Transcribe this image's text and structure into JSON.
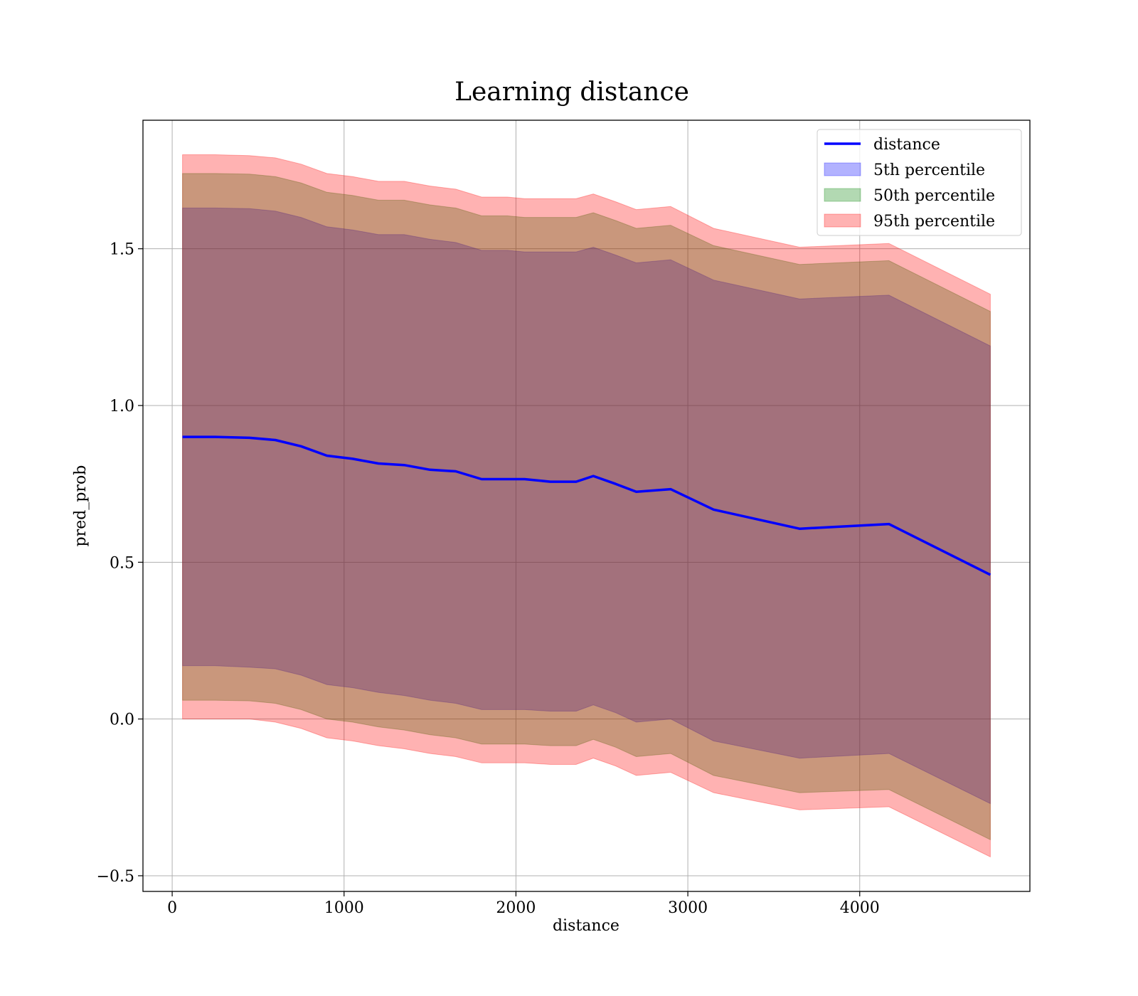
{
  "chart_data": {
    "type": "area",
    "title": "Learning distance",
    "xlabel": "distance",
    "ylabel": "pred_prob",
    "xlim": [
      -170,
      4990
    ],
    "ylim": [
      -0.55,
      1.91
    ],
    "xticks": [
      0,
      1000,
      2000,
      3000,
      4000
    ],
    "xtick_labels": [
      "0",
      "1000",
      "2000",
      "3000",
      "4000"
    ],
    "yticks": [
      -0.5,
      0.0,
      0.5,
      1.0,
      1.5
    ],
    "ytick_labels": [
      "−0.5",
      "0.0",
      "0.5",
      "1.0",
      "1.5"
    ],
    "grid": true,
    "legend_position": "top-right",
    "x": [
      60,
      250,
      450,
      600,
      750,
      900,
      1050,
      1200,
      1350,
      1500,
      1650,
      1800,
      1950,
      2050,
      2200,
      2350,
      2450,
      2580,
      2700,
      2900,
      3150,
      3650,
      4170,
      4760
    ],
    "series": [
      {
        "name": "distance",
        "kind": "line",
        "color": "#0000ff",
        "values": [
          0.9,
          0.9,
          0.897,
          0.89,
          0.87,
          0.84,
          0.83,
          0.815,
          0.81,
          0.795,
          0.79,
          0.765,
          0.765,
          0.765,
          0.757,
          0.757,
          0.775,
          0.75,
          0.725,
          0.733,
          0.668,
          0.607,
          0.622,
          0.46
        ]
      },
      {
        "name": "5th percentile",
        "kind": "band",
        "color": "#0000ff",
        "lower": [
          0.17,
          0.17,
          0.165,
          0.16,
          0.14,
          0.11,
          0.1,
          0.085,
          0.075,
          0.06,
          0.05,
          0.03,
          0.03,
          0.03,
          0.025,
          0.025,
          0.045,
          0.02,
          -0.01,
          0.0,
          -0.07,
          -0.125,
          -0.11,
          -0.27
        ],
        "upper": [
          1.63,
          1.63,
          1.628,
          1.62,
          1.6,
          1.57,
          1.56,
          1.545,
          1.545,
          1.53,
          1.52,
          1.495,
          1.495,
          1.49,
          1.49,
          1.49,
          1.505,
          1.48,
          1.455,
          1.465,
          1.4,
          1.34,
          1.352,
          1.19
        ]
      },
      {
        "name": "50th percentile",
        "kind": "band",
        "color": "#008000",
        "lower": [
          0.06,
          0.06,
          0.058,
          0.05,
          0.03,
          0.0,
          -0.01,
          -0.025,
          -0.035,
          -0.05,
          -0.06,
          -0.08,
          -0.08,
          -0.08,
          -0.085,
          -0.085,
          -0.065,
          -0.09,
          -0.12,
          -0.11,
          -0.18,
          -0.235,
          -0.225,
          -0.385
        ],
        "upper": [
          1.74,
          1.74,
          1.738,
          1.73,
          1.71,
          1.68,
          1.67,
          1.655,
          1.655,
          1.64,
          1.63,
          1.605,
          1.605,
          1.6,
          1.6,
          1.6,
          1.615,
          1.59,
          1.565,
          1.575,
          1.51,
          1.45,
          1.462,
          1.3
        ]
      },
      {
        "name": "95th percentile",
        "kind": "band",
        "color": "#ff0000",
        "lower": [
          0.0,
          0.0,
          0.0,
          -0.01,
          -0.03,
          -0.06,
          -0.07,
          -0.085,
          -0.095,
          -0.11,
          -0.12,
          -0.14,
          -0.14,
          -0.14,
          -0.145,
          -0.145,
          -0.125,
          -0.15,
          -0.18,
          -0.17,
          -0.235,
          -0.29,
          -0.28,
          -0.44
        ],
        "upper": [
          1.8,
          1.8,
          1.797,
          1.79,
          1.77,
          1.74,
          1.73,
          1.715,
          1.715,
          1.7,
          1.69,
          1.665,
          1.665,
          1.66,
          1.66,
          1.66,
          1.675,
          1.65,
          1.625,
          1.635,
          1.565,
          1.505,
          1.517,
          1.355
        ]
      }
    ]
  }
}
